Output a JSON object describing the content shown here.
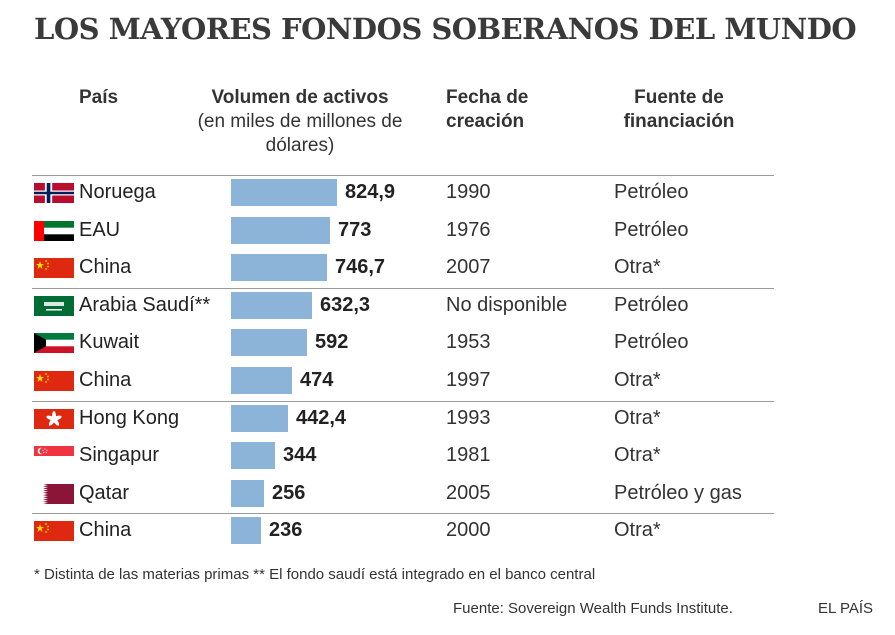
{
  "title": "LOS MAYORES FONDOS SOBERANOS DEL MUNDO",
  "headers": {
    "pais": "País",
    "volumen": "Volumen de activos",
    "volumen_sub": "(en miles de millones de dólares)",
    "fecha": "Fecha de creación",
    "fuente": "Fuente de financiación"
  },
  "chart_data": {
    "type": "bar",
    "orientation": "horizontal",
    "categories": [
      "Noruega",
      "EAU",
      "China",
      "Arabia Saudí**",
      "Kuwait",
      "China",
      "Hong Kong",
      "Singapur",
      "Qatar",
      "China"
    ],
    "values": [
      824.9,
      773,
      746.7,
      632.3,
      592,
      474,
      442.4,
      344,
      256,
      236
    ],
    "value_labels": [
      "824,9",
      "773",
      "746,7",
      "632,3",
      "592",
      "474",
      "442,4",
      "344",
      "256",
      "236"
    ],
    "color": "#8cb4d8",
    "title": "LOS MAYORES FONDOS SOBERANOS DEL MUNDO"
  },
  "rows": [
    {
      "flag": "norway-flag-icon",
      "country": "Noruega",
      "value": "824,9",
      "year": "1990",
      "source": "Petróleo"
    },
    {
      "flag": "uae-flag-icon",
      "country": "EAU",
      "value": "773",
      "year": "1976",
      "source": "Petróleo"
    },
    {
      "flag": "china-flag-icon",
      "country": "China",
      "value": "746,7",
      "year": "2007",
      "source": "Otra*"
    },
    {
      "flag": "saudi-arabia-flag-icon",
      "country": "Arabia Saudí**",
      "value": "632,3",
      "year": "No disponible",
      "source": "Petróleo"
    },
    {
      "flag": "kuwait-flag-icon",
      "country": "Kuwait",
      "value": "592",
      "year": "1953",
      "source": "Petróleo"
    },
    {
      "flag": "china-flag-icon",
      "country": "China",
      "value": "474",
      "year": "1997",
      "source": "Otra*"
    },
    {
      "flag": "hong-kong-flag-icon",
      "country": "Hong Kong",
      "value": "442,4",
      "year": "1993",
      "source": "Otra*"
    },
    {
      "flag": "singapore-flag-icon",
      "country": "Singapur",
      "value": "344",
      "year": "1981",
      "source": "Otra*"
    },
    {
      "flag": "qatar-flag-icon",
      "country": "Qatar",
      "value": "256",
      "year": "2005",
      "source": "Petróleo y gas"
    },
    {
      "flag": "china-flag-icon",
      "country": "China",
      "value": "236",
      "year": "2000",
      "source": "Otra*"
    }
  ],
  "footnote": "* Distinta de las materias primas  ** El fondo saudí está integrado en el banco central",
  "fuente_line": "Fuente: Sovereign Wealth Funds Institute.",
  "brand": "EL PAÍS"
}
